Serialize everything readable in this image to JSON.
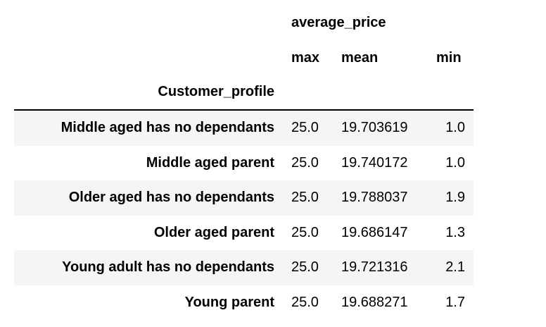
{
  "table": {
    "column_group": "average_price",
    "columns": [
      "max",
      "mean",
      "min"
    ],
    "index_name": "Customer_profile",
    "rows": [
      {
        "label": "Middle aged has no dependants",
        "max": "25.0",
        "mean": "19.703619",
        "min": "1.0"
      },
      {
        "label": "Middle aged parent",
        "max": "25.0",
        "mean": "19.740172",
        "min": "1.0"
      },
      {
        "label": "Older aged has no dependants",
        "max": "25.0",
        "mean": "19.788037",
        "min": "1.9"
      },
      {
        "label": "Older aged parent",
        "max": "25.0",
        "mean": "19.686147",
        "min": "1.3"
      },
      {
        "label": "Young adult has no dependants",
        "max": "25.0",
        "mean": "19.721316",
        "min": "2.1"
      },
      {
        "label": "Young parent",
        "max": "25.0",
        "mean": "19.688271",
        "min": "1.7"
      }
    ],
    "colors": {
      "stripe": "#f5f5f5",
      "rule": "#000000",
      "text": "#000000",
      "background": "#ffffff"
    }
  }
}
